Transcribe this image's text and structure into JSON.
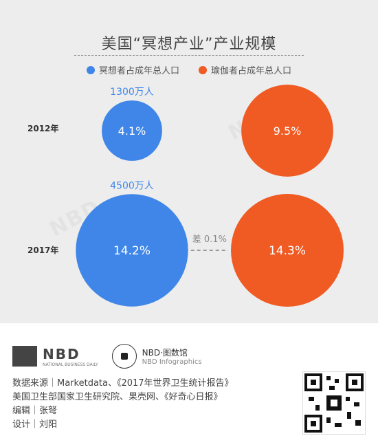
{
  "chart_data": {
    "type": "bubble",
    "title": "美国“冥想产业”产业规模",
    "legend": [
      {
        "label": "冥想者占成年总人口",
        "color": "#3f86e8"
      },
      {
        "label": "瑜伽者占成年总人口",
        "color": "#f05a23"
      }
    ],
    "categories": [
      "2012年",
      "2017年"
    ],
    "series": [
      {
        "name": "冥想者占成年总人口",
        "values": [
          4.1,
          14.2
        ],
        "labels": [
          "4.1%",
          "14.2%"
        ],
        "annotations": [
          "1300万人",
          "4500万人"
        ]
      },
      {
        "name": "瑜伽者占成年总人口",
        "values": [
          9.5,
          14.3
        ],
        "labels": [
          "9.5%",
          "14.3%"
        ]
      }
    ],
    "comparison_note": "差 0.1%"
  },
  "watermark": "NBD",
  "footer": {
    "logo_text": "NBD",
    "logo_sub": "NATIONAL BUSINESS DAILY",
    "brand_text": "NBD·图数馆",
    "brand_sub": "NBD Infographics",
    "lines": [
      "数据来源｜Marketdata、《2017年世界卫生统计报告》",
      "美国卫生部国家卫生研究院、果壳网、《好奇心日报》",
      "编辑｜张弩",
      "设计｜刘阳"
    ]
  }
}
